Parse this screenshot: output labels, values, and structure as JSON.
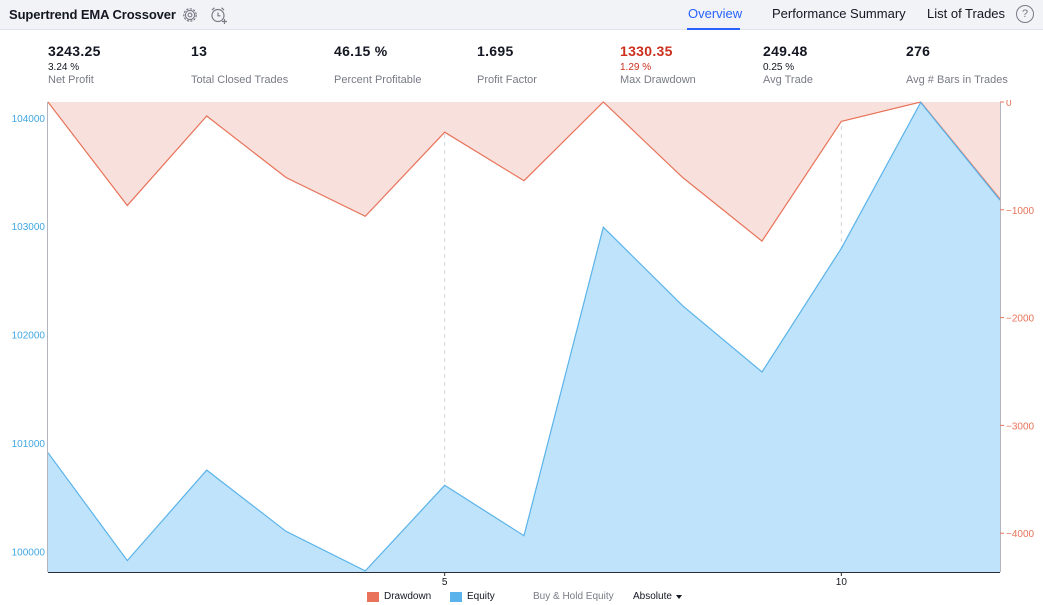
{
  "header": {
    "title": "Supertrend EMA Crossover",
    "tabs": [
      {
        "label": "Overview",
        "active": true
      },
      {
        "label": "Performance Summary",
        "active": false
      },
      {
        "label": "List of Trades",
        "active": false
      }
    ],
    "help_glyph": "?"
  },
  "stats": [
    {
      "value": "3243.25",
      "pct": "3.24 %",
      "label": "Net Profit"
    },
    {
      "value": "13",
      "pct": "",
      "label": "Total Closed Trades"
    },
    {
      "value": "46.15 %",
      "pct": "",
      "label": "Percent Profitable"
    },
    {
      "value": "1.695",
      "pct": "",
      "label": "Profit Factor"
    },
    {
      "value": "1330.35",
      "pct": "1.29 %",
      "label": "Max Drawdown"
    },
    {
      "value": "249.48",
      "pct": "0.25 %",
      "label": "Avg Trade"
    },
    {
      "value": "276",
      "pct": "",
      "label": "Avg # Bars in Trades"
    }
  ],
  "legend": {
    "drawdown": "Drawdown",
    "equity": "Equity",
    "buy_hold": "Buy & Hold Equity",
    "mode": "Absolute"
  },
  "colors": {
    "equity_line": "#5ab3ea",
    "equity_fill": "#bfe3fb",
    "drawdown_line": "#e8735a",
    "drawdown_fill": "#f8e1dc",
    "left_axis_text": "#41a7e3",
    "right_axis_text": "#e8735a",
    "accent": "#2962ff"
  },
  "icons": [
    "gear-icon",
    "alarm-add-icon",
    "help-icon",
    "chevron-down-icon"
  ],
  "chart_data": {
    "type": "area",
    "x": [
      0,
      1,
      2,
      3,
      4,
      5,
      6,
      7,
      8,
      9,
      10,
      11,
      12
    ],
    "x_ticks": [
      "5",
      "10"
    ],
    "x_tick_values": [
      5,
      10
    ],
    "series": [
      {
        "name": "Equity",
        "axis": "left",
        "values": [
          100920,
          99925,
          100760,
          100195,
          99830,
          100620,
          100155,
          103000,
          102275,
          101665,
          102805,
          104150,
          103250
        ]
      },
      {
        "name": "Drawdown",
        "axis": "right",
        "values": [
          0,
          -960,
          -130,
          -700,
          -1060,
          -280,
          -730,
          0,
          -700,
          -1290,
          -180,
          0,
          -900
        ]
      }
    ],
    "left_axis": {
      "ticks": [
        100000,
        101000,
        102000,
        103000,
        104000
      ],
      "ylim": [
        99820,
        104155
      ]
    },
    "right_axis": {
      "ticks": [
        0,
        -1000,
        -2000,
        -3000,
        -4000
      ],
      "ylim": [
        -4360,
        0
      ]
    },
    "xlim": [
      0,
      12
    ]
  }
}
